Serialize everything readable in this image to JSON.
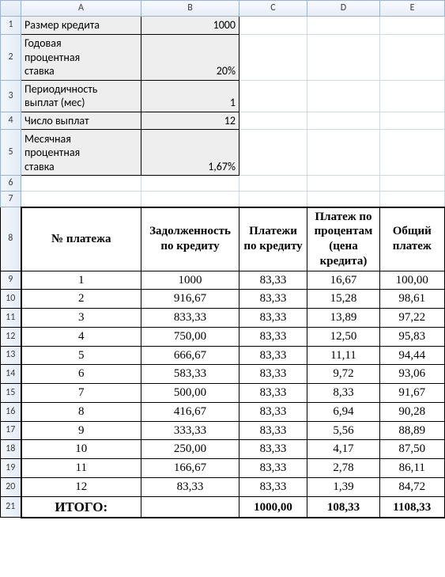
{
  "columns": [
    "A",
    "B",
    "C",
    "D",
    "E"
  ],
  "params": {
    "r1": {
      "label": "Размер кредита",
      "value": "1000"
    },
    "r2": {
      "label": "Годовая\nпроцентная\nставка",
      "value": "20%"
    },
    "r3": {
      "label": "Периодичность\nвыплат (мес)",
      "value": "1"
    },
    "r4": {
      "label": "Число выплат",
      "value": "12"
    },
    "r5": {
      "label": "Месячная\nпроцентная\nставка",
      "value": "1,67%"
    }
  },
  "table": {
    "headers": {
      "a": "№ платежа",
      "b": "Задолженность по кредиту",
      "c": "Платежи по кредиту",
      "d": "Платеж по процентам (цена кредита)",
      "e": "Общий платеж"
    },
    "rows": [
      {
        "n": "1",
        "debt": "1000",
        "pay": "83,33",
        "pct": "16,67",
        "total": "100,00"
      },
      {
        "n": "2",
        "debt": "916,67",
        "pay": "83,33",
        "pct": "15,28",
        "total": "98,61"
      },
      {
        "n": "3",
        "debt": "833,33",
        "pay": "83,33",
        "pct": "13,89",
        "total": "97,22"
      },
      {
        "n": "4",
        "debt": "750,00",
        "pay": "83,33",
        "pct": "12,50",
        "total": "95,83"
      },
      {
        "n": "5",
        "debt": "666,67",
        "pay": "83,33",
        "pct": "11,11",
        "total": "94,44"
      },
      {
        "n": "6",
        "debt": "583,33",
        "pay": "83,33",
        "pct": "9,72",
        "total": "93,06"
      },
      {
        "n": "7",
        "debt": "500,00",
        "pay": "83,33",
        "pct": "8,33",
        "total": "91,67"
      },
      {
        "n": "8",
        "debt": "416,67",
        "pay": "83,33",
        "pct": "6,94",
        "total": "90,28"
      },
      {
        "n": "9",
        "debt": "333,33",
        "pay": "83,33",
        "pct": "5,56",
        "total": "88,89"
      },
      {
        "n": "10",
        "debt": "250,00",
        "pay": "83,33",
        "pct": "4,17",
        "total": "87,50"
      },
      {
        "n": "11",
        "debt": "166,67",
        "pay": "83,33",
        "pct": "2,78",
        "total": "86,11"
      },
      {
        "n": "12",
        "debt": "83,33",
        "pay": "83,33",
        "pct": "1,39",
        "total": "84,72"
      }
    ],
    "footer": {
      "label": "ИТОГО:",
      "pay": "1000,00",
      "pct": "108,33",
      "total": "1108,33"
    }
  },
  "style": {
    "shaded_bg": "#eeeeee",
    "grid_color": "#d0d7e5",
    "header_bg_top": "#f7faff",
    "header_bg_bottom": "#e6ecf5",
    "header_border": "#9db4d1",
    "table_border": "#000000",
    "font_main": "Calibri",
    "font_table": "Times New Roman",
    "font_size_main": 14,
    "font_size_header": 12,
    "font_size_table": 15
  }
}
